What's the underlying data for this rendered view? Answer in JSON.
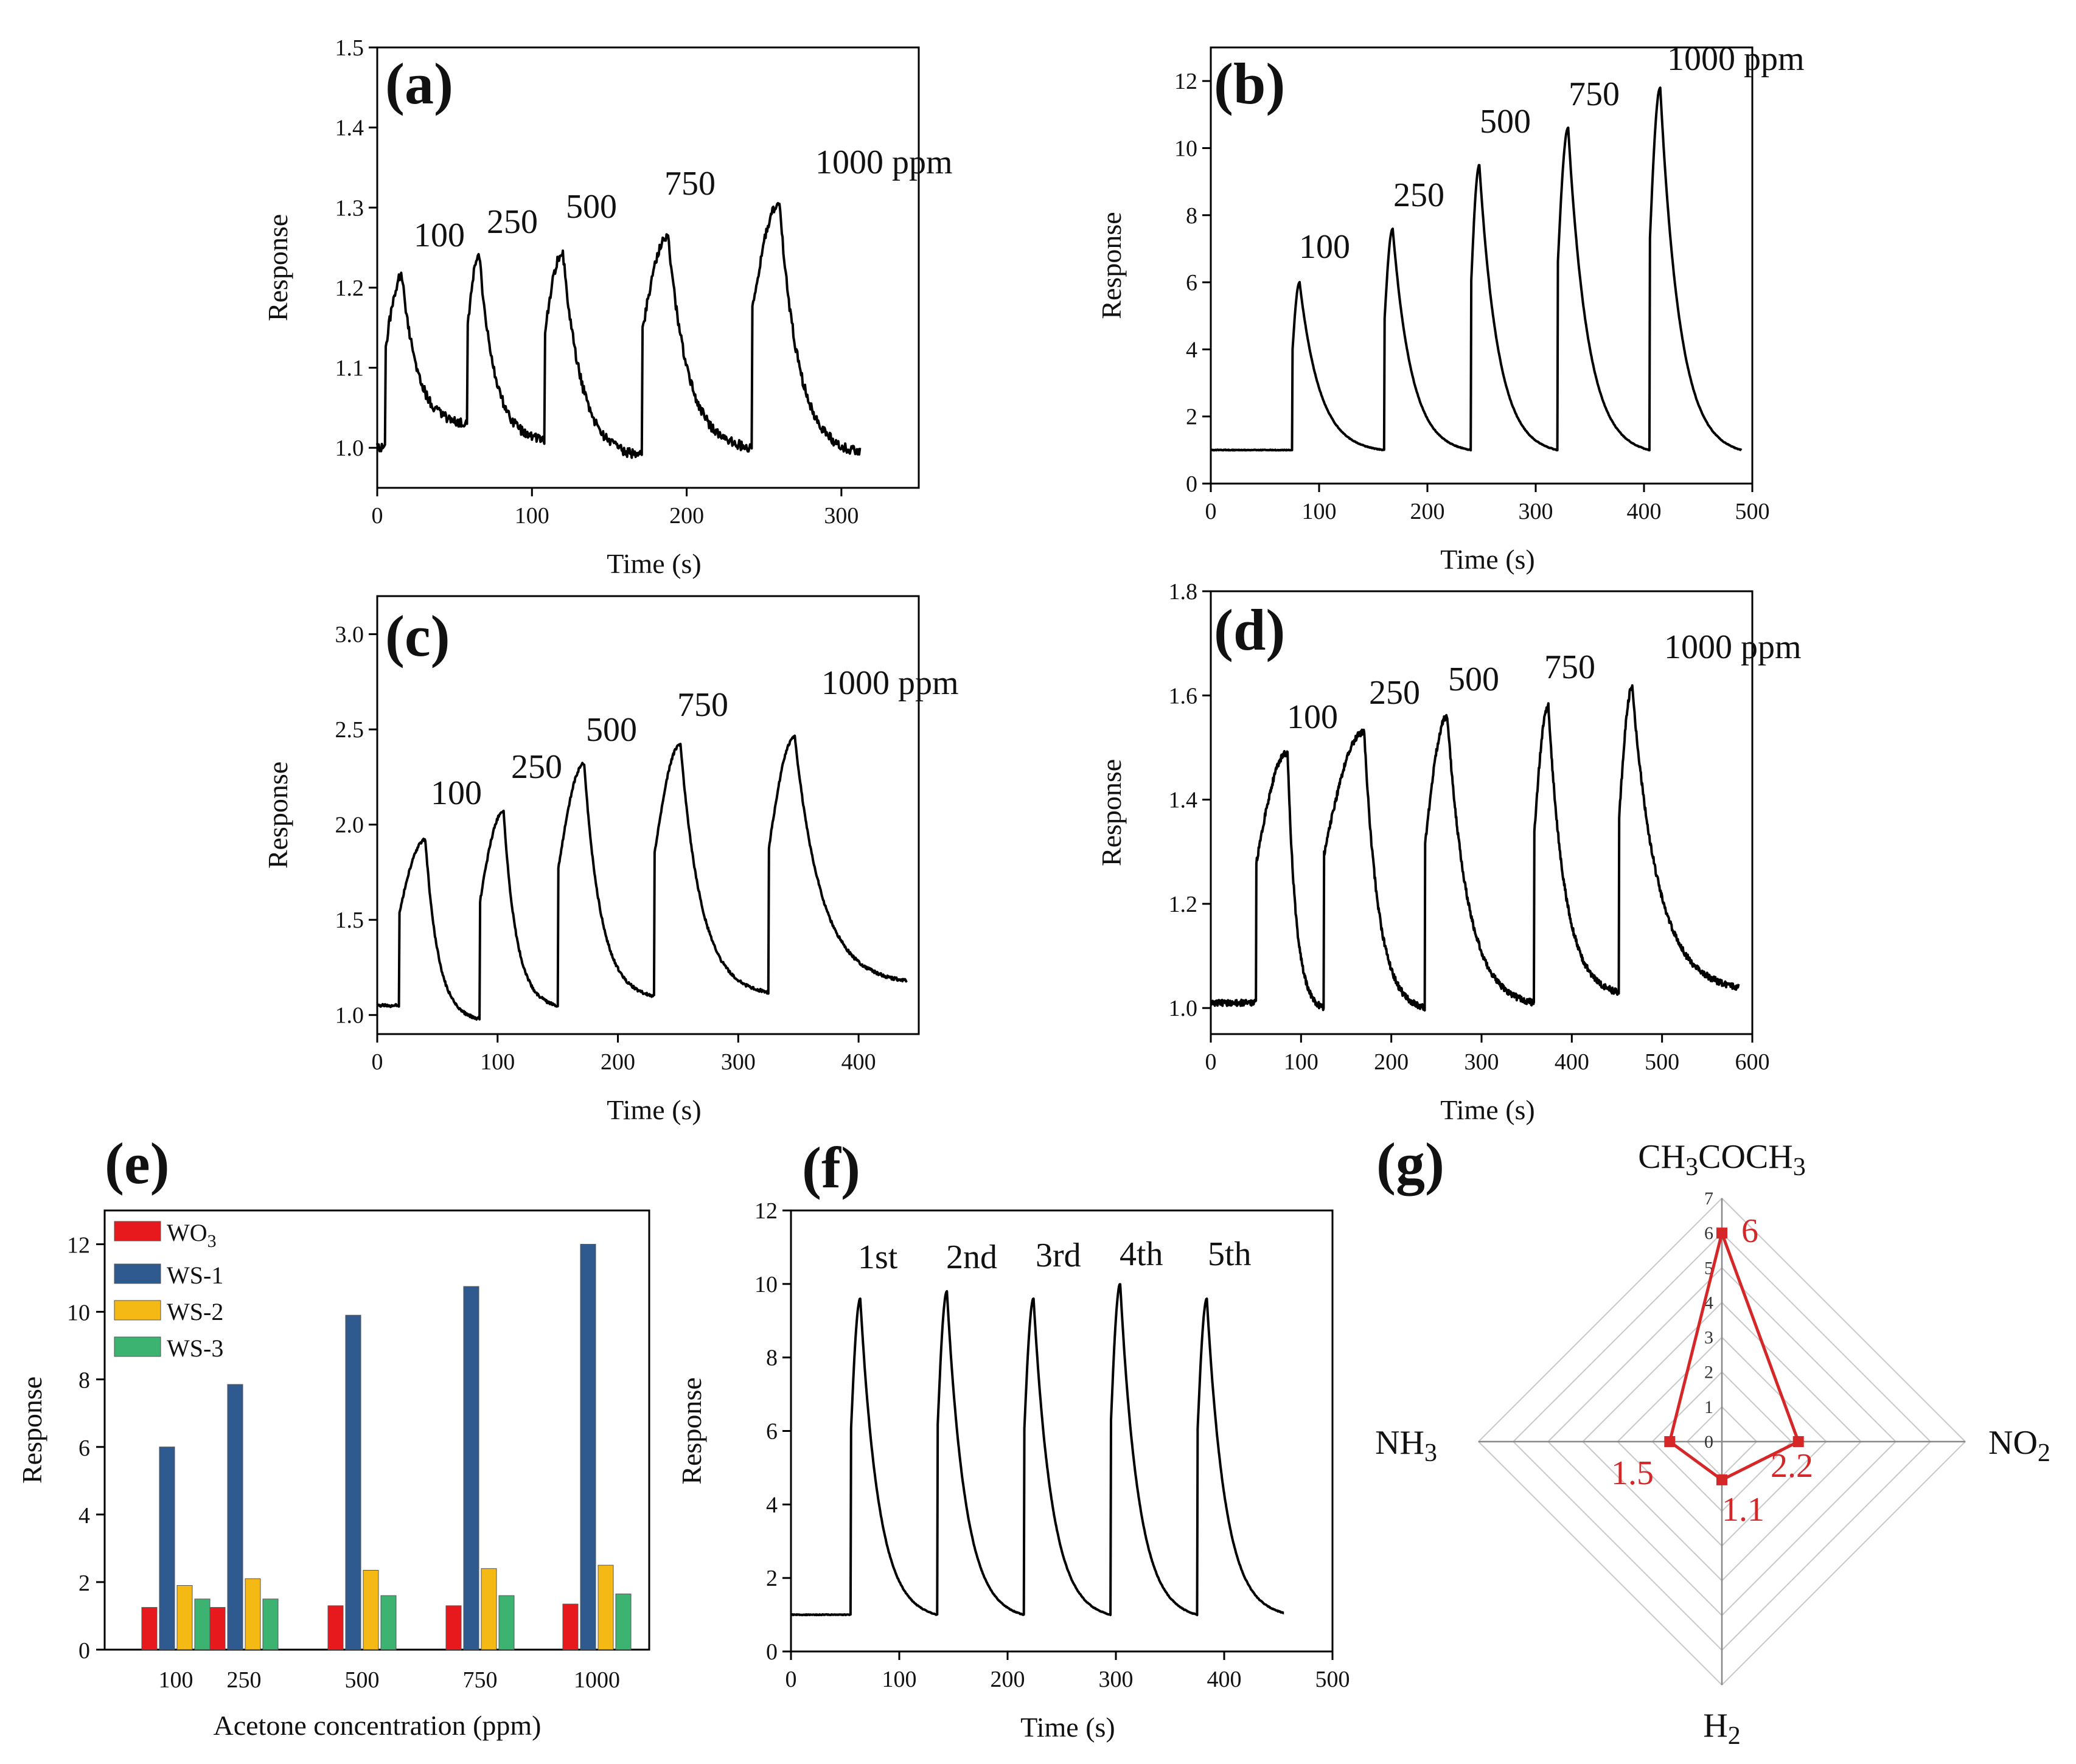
{
  "panels": [
    {
      "id": "a",
      "label": "(a)",
      "xlabel": "Time (s)",
      "ylabel": "Response",
      "xlim": [
        0,
        350
      ],
      "ylim": [
        0.95,
        1.5
      ],
      "xticks": [
        "0",
        "100",
        "200",
        "300"
      ],
      "xtick_values": [
        0,
        100,
        200,
        300
      ],
      "yticks": [
        "1.0",
        "1.1",
        "1.2",
        "1.3",
        "1.4",
        "1.5"
      ],
      "ytick_values": [
        1.0,
        1.1,
        1.2,
        1.3,
        1.4,
        1.5
      ],
      "baseline": 1.0,
      "t_start": 0,
      "t_end": 312,
      "noise": 0.006,
      "pulses": [
        {
          "on": 5,
          "peak_t": 16,
          "peak": 1.215,
          "off": 58,
          "rec": 1.03,
          "label": "100"
        },
        {
          "on": 58,
          "peak_t": 66,
          "peak": 1.24,
          "off": 108,
          "rec": 1.01,
          "label": "250"
        },
        {
          "on": 108,
          "peak_t": 120,
          "peak": 1.245,
          "off": 171,
          "rec": 0.99,
          "label": "500"
        },
        {
          "on": 171,
          "peak_t": 188,
          "peak": 1.265,
          "off": 242,
          "rec": 1.0,
          "label": "750"
        },
        {
          "on": 242,
          "peak_t": 260,
          "peak": 1.305,
          "off": 312,
          "rec": 0.995,
          "label": "1000 ppm"
        }
      ]
    },
    {
      "id": "b",
      "label": "(b)",
      "xlabel": "Time (s)",
      "ylabel": "Response",
      "xlim": [
        0,
        500
      ],
      "ylim": [
        0,
        13
      ],
      "xticks": [
        "0",
        "100",
        "200",
        "300",
        "400",
        "500"
      ],
      "xtick_values": [
        0,
        100,
        200,
        300,
        400,
        500
      ],
      "yticks": [
        "0",
        "2",
        "4",
        "6",
        "8",
        "10",
        "12"
      ],
      "ytick_values": [
        0,
        2,
        4,
        6,
        8,
        10,
        12
      ],
      "baseline": 1.0,
      "t_start": 0,
      "t_end": 490,
      "noise": 0.01,
      "pulses": [
        {
          "on": 75,
          "peak_t": 82,
          "peak": 6.0,
          "off": 160,
          "rec": 1.0,
          "label": "100"
        },
        {
          "on": 160,
          "peak_t": 168,
          "peak": 7.6,
          "off": 240,
          "rec": 1.0,
          "label": "250"
        },
        {
          "on": 240,
          "peak_t": 248,
          "peak": 9.5,
          "off": 320,
          "rec": 1.0,
          "label": "500"
        },
        {
          "on": 320,
          "peak_t": 330,
          "peak": 10.6,
          "off": 405,
          "rec": 1.0,
          "label": "750"
        },
        {
          "on": 405,
          "peak_t": 415,
          "peak": 11.8,
          "off": 490,
          "rec": 1.0,
          "label": "1000 ppm"
        }
      ]
    },
    {
      "id": "c",
      "label": "(c)",
      "xlabel": "Time (s)",
      "ylabel": "Response",
      "xlim": [
        0,
        450
      ],
      "ylim": [
        0.9,
        3.2
      ],
      "xticks": [
        "0",
        "100",
        "200",
        "300",
        "400"
      ],
      "xtick_values": [
        0,
        100,
        200,
        300,
        400
      ],
      "yticks": [
        "1.0",
        "1.5",
        "2.0",
        "2.5",
        "3.0"
      ],
      "ytick_values": [
        1.0,
        1.5,
        2.0,
        2.5,
        3.0
      ],
      "baseline": 1.05,
      "t_start": 0,
      "t_end": 440,
      "noise": 0.008,
      "pulses": [
        {
          "on": 18,
          "peak_t": 40,
          "peak": 1.92,
          "off": 85,
          "rec": 0.98,
          "label": "100"
        },
        {
          "on": 85,
          "peak_t": 105,
          "peak": 2.07,
          "off": 150,
          "rec": 1.05,
          "label": "250"
        },
        {
          "on": 150,
          "peak_t": 172,
          "peak": 2.32,
          "off": 230,
          "rec": 1.1,
          "label": "500"
        },
        {
          "on": 230,
          "peak_t": 252,
          "peak": 2.42,
          "off": 325,
          "rec": 1.12,
          "label": "750"
        },
        {
          "on": 325,
          "peak_t": 347,
          "peak": 2.46,
          "off": 440,
          "rec": 1.18,
          "label": "1000 ppm"
        }
      ]
    },
    {
      "id": "d",
      "label": "(d)",
      "xlabel": "Time (s)",
      "ylabel": "Response",
      "xlim": [
        0,
        600
      ],
      "ylim": [
        0.95,
        1.8
      ],
      "xticks": [
        "0",
        "100",
        "200",
        "300",
        "400",
        "500",
        "600"
      ],
      "xtick_values": [
        0,
        100,
        200,
        300,
        400,
        500,
        600
      ],
      "yticks": [
        "1.0",
        "1.2",
        "1.4",
        "1.6",
        "1.8"
      ],
      "ytick_values": [
        1.0,
        1.2,
        1.4,
        1.6,
        1.8
      ],
      "baseline": 1.01,
      "t_start": 0,
      "t_end": 585,
      "noise": 0.006,
      "pulses": [
        {
          "on": 50,
          "peak_t": 85,
          "peak": 1.49,
          "off": 125,
          "rec": 1.0,
          "label": "100"
        },
        {
          "on": 125,
          "peak_t": 170,
          "peak": 1.53,
          "off": 237,
          "rec": 1.0,
          "label": "250"
        },
        {
          "on": 237,
          "peak_t": 262,
          "peak": 1.56,
          "off": 358,
          "rec": 1.01,
          "label": "500"
        },
        {
          "on": 358,
          "peak_t": 374,
          "peak": 1.58,
          "off": 452,
          "rec": 1.03,
          "label": "750"
        },
        {
          "on": 452,
          "peak_t": 467,
          "peak": 1.615,
          "off": 585,
          "rec": 1.04,
          "label": "1000 ppm"
        }
      ]
    },
    {
      "id": "f",
      "label": "(f)",
      "xlabel": "Time (s)",
      "ylabel": "Response",
      "xlim": [
        0,
        500
      ],
      "ylim": [
        0,
        12
      ],
      "xticks": [
        "0",
        "100",
        "200",
        "300",
        "400",
        "500"
      ],
      "xtick_values": [
        0,
        100,
        200,
        300,
        400,
        500
      ],
      "yticks": [
        "0",
        "2",
        "4",
        "6",
        "8",
        "10",
        "12"
      ],
      "ytick_values": [
        0,
        2,
        4,
        6,
        8,
        10,
        12
      ],
      "baseline": 1.0,
      "t_start": 0,
      "t_end": 455,
      "noise": 0.01,
      "pulses": [
        {
          "on": 55,
          "peak_t": 64,
          "peak": 9.6,
          "off": 135,
          "rec": 1.0,
          "label": "1st"
        },
        {
          "on": 135,
          "peak_t": 144,
          "peak": 9.8,
          "off": 215,
          "rec": 1.0,
          "label": "2nd"
        },
        {
          "on": 215,
          "peak_t": 224,
          "peak": 9.6,
          "off": 295,
          "rec": 1.0,
          "label": "3rd"
        },
        {
          "on": 295,
          "peak_t": 304,
          "peak": 10.0,
          "off": 375,
          "rec": 1.0,
          "label": "4th"
        },
        {
          "on": 375,
          "peak_t": 384,
          "peak": 9.6,
          "off": 455,
          "rec": 1.05,
          "label": "5th"
        }
      ]
    }
  ],
  "chart_data": [
    {
      "type": "line",
      "panel": "a",
      "title": "(a)",
      "xlabel": "Time (s)",
      "ylabel": "Response",
      "xlim": [
        0,
        350
      ],
      "ylim": [
        0.95,
        1.5
      ],
      "peaks": [
        {
          "x": 16,
          "y": 1.215,
          "label": "100"
        },
        {
          "x": 66,
          "y": 1.24,
          "label": "250"
        },
        {
          "x": 120,
          "y": 1.245,
          "label": "500"
        },
        {
          "x": 188,
          "y": 1.265,
          "label": "750"
        },
        {
          "x": 260,
          "y": 1.305,
          "label": "1000 ppm"
        }
      ]
    },
    {
      "type": "line",
      "panel": "b",
      "title": "(b)",
      "xlabel": "Time (s)",
      "ylabel": "Response",
      "xlim": [
        0,
        500
      ],
      "ylim": [
        0,
        13
      ],
      "peaks": [
        {
          "x": 82,
          "y": 6.0,
          "label": "100"
        },
        {
          "x": 168,
          "y": 7.6,
          "label": "250"
        },
        {
          "x": 248,
          "y": 9.5,
          "label": "500"
        },
        {
          "x": 330,
          "y": 10.6,
          "label": "750"
        },
        {
          "x": 415,
          "y": 11.8,
          "label": "1000 ppm"
        }
      ]
    },
    {
      "type": "line",
      "panel": "c",
      "title": "(c)",
      "xlabel": "Time (s)",
      "ylabel": "Response",
      "xlim": [
        0,
        450
      ],
      "ylim": [
        0.9,
        3.2
      ],
      "peaks": [
        {
          "x": 40,
          "y": 1.92,
          "label": "100"
        },
        {
          "x": 105,
          "y": 2.07,
          "label": "250"
        },
        {
          "x": 172,
          "y": 2.32,
          "label": "500"
        },
        {
          "x": 252,
          "y": 2.42,
          "label": "750"
        },
        {
          "x": 347,
          "y": 2.46,
          "label": "1000 ppm"
        }
      ]
    },
    {
      "type": "line",
      "panel": "d",
      "title": "(d)",
      "xlabel": "Time (s)",
      "ylabel": "Response",
      "xlim": [
        0,
        600
      ],
      "ylim": [
        0.95,
        1.8
      ],
      "peaks": [
        {
          "x": 85,
          "y": 1.49,
          "label": "100"
        },
        {
          "x": 170,
          "y": 1.53,
          "label": "250"
        },
        {
          "x": 262,
          "y": 1.56,
          "label": "500"
        },
        {
          "x": 374,
          "y": 1.58,
          "label": "750"
        },
        {
          "x": 467,
          "y": 1.615,
          "label": "1000 ppm"
        }
      ]
    },
    {
      "type": "bar",
      "panel": "e",
      "title": "(e)",
      "xlabel": "Acetone concentration (ppm)",
      "ylabel": "Response",
      "categories": [
        "100",
        "250",
        "500",
        "750",
        "1000"
      ],
      "series": [
        {
          "name": "WO3",
          "values": [
            1.25,
            1.25,
            1.3,
            1.3,
            1.35
          ],
          "color": "#e8191d"
        },
        {
          "name": "WS-1",
          "values": [
            6.0,
            7.85,
            9.9,
            10.75,
            12.0
          ],
          "color": "#2f5a8f"
        },
        {
          "name": "WS-2",
          "values": [
            1.9,
            2.1,
            2.35,
            2.4,
            2.5
          ],
          "color": "#f5b915"
        },
        {
          "name": "WS-3",
          "values": [
            1.5,
            1.5,
            1.6,
            1.6,
            1.65
          ],
          "color": "#3cb371"
        }
      ],
      "ylim": [
        0,
        13
      ],
      "yticks": [
        "0",
        "2",
        "4",
        "6",
        "8",
        "10",
        "12"
      ],
      "ytick_values": [
        0,
        2,
        4,
        6,
        8,
        10,
        12
      ],
      "legend": "top-left"
    },
    {
      "type": "line",
      "panel": "f",
      "title": "(f)",
      "xlabel": "Time (s)",
      "ylabel": "Response",
      "xlim": [
        0,
        500
      ],
      "ylim": [
        0,
        12
      ],
      "peaks": [
        {
          "x": 64,
          "y": 9.6,
          "label": "1st"
        },
        {
          "x": 144,
          "y": 9.8,
          "label": "2nd"
        },
        {
          "x": 224,
          "y": 9.6,
          "label": "3rd"
        },
        {
          "x": 304,
          "y": 10.0,
          "label": "4th"
        },
        {
          "x": 384,
          "y": 9.6,
          "label": "5th"
        }
      ]
    },
    {
      "type": "radar",
      "panel": "g",
      "title": "(g)",
      "axes": [
        "CH3COCH3",
        "NO2",
        "H2",
        "NH3"
      ],
      "values": [
        6,
        2.2,
        1.1,
        1.5
      ],
      "value_labels": [
        "6",
        "2.2",
        "1.1",
        "1.5"
      ],
      "rmax": 7,
      "rticks": [
        "0",
        "1",
        "2",
        "3",
        "4",
        "5",
        "6",
        "7"
      ],
      "color": "#d62728"
    }
  ],
  "bar_panel": {
    "label": "(e)",
    "xlabel": "Acetone concentration (ppm)",
    "ylabel": "Response",
    "legend": [
      {
        "base": "WO",
        "sub": "3"
      },
      {
        "base": "WS-1",
        "sub": ""
      },
      {
        "base": "WS-2",
        "sub": ""
      },
      {
        "base": "WS-3",
        "sub": ""
      }
    ]
  },
  "radar_panel": {
    "label": "(g)",
    "axis_labels": [
      {
        "parts": [
          "CH",
          "3",
          "COCH",
          "3"
        ]
      },
      {
        "parts": [
          "NO",
          "2"
        ]
      },
      {
        "parts": [
          "H",
          "2"
        ]
      },
      {
        "parts": [
          "NH",
          "3"
        ]
      }
    ]
  }
}
